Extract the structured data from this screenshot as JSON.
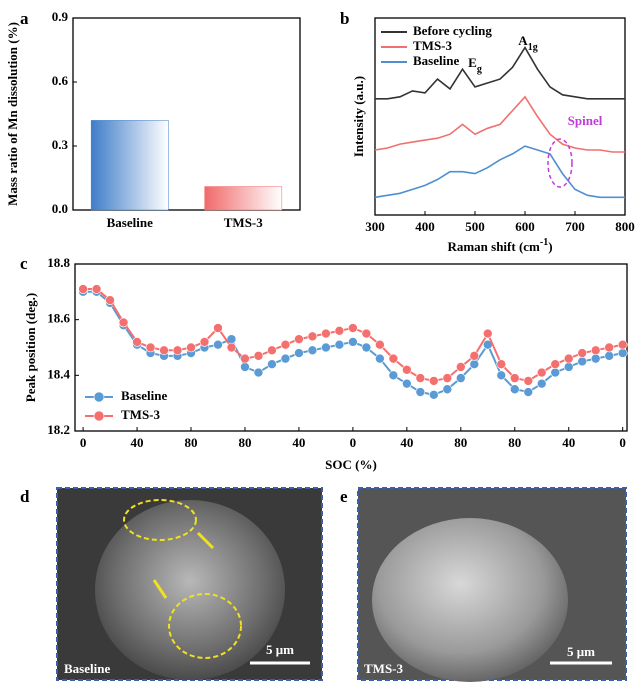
{
  "chart_data": [
    {
      "type": "bar",
      "label": "a",
      "y_label": "Mass ratio of Mn dissolution (%)",
      "categories": [
        "Baseline",
        "TMS-3"
      ],
      "values": [
        0.42,
        0.11
      ],
      "colors": [
        "#3f7cc9",
        "#f06a6a"
      ],
      "ylim": [
        0,
        0.9
      ],
      "yticks": [
        {
          "value": 0,
          "label": "0.0"
        },
        0.3,
        0.6,
        0.9
      ]
    },
    {
      "type": "line",
      "label": "b",
      "y_label": "Intensity (a.u.)",
      "x_label": {
        "text": "Raman shift (cm",
        "sup": "-1",
        "end": ")"
      },
      "x": [
        300,
        325,
        350,
        375,
        400,
        425,
        450,
        475,
        500,
        525,
        550,
        575,
        600,
        625,
        650,
        675,
        700,
        725,
        750,
        775,
        800
      ],
      "series": [
        {
          "name": "Before cycling",
          "color": "#333333",
          "values": [
            5.9,
            5.9,
            6.0,
            6.3,
            6.2,
            6.9,
            6.4,
            7.4,
            6.5,
            6.7,
            6.9,
            7.5,
            8.5,
            7.4,
            6.5,
            6.1,
            6.0,
            5.9,
            5.9,
            5.9,
            5.9
          ]
        },
        {
          "name": "TMS-3",
          "color": "#f07070",
          "values": [
            3.3,
            3.4,
            3.6,
            3.7,
            3.8,
            3.9,
            4.1,
            4.6,
            4.1,
            4.4,
            4.6,
            5.3,
            6.0,
            5.0,
            4.1,
            3.6,
            3.4,
            3.3,
            3.3,
            3.2,
            3.2
          ]
        },
        {
          "name": "Baseline",
          "color": "#4f8fd0",
          "values": [
            0.9,
            1.0,
            1.1,
            1.3,
            1.5,
            1.8,
            2.2,
            2.2,
            2.1,
            2.4,
            2.8,
            3.1,
            3.5,
            3.3,
            3.1,
            2.1,
            1.3,
            1.0,
            0.9,
            0.9,
            0.9
          ]
        }
      ],
      "xlim": [
        300,
        800
      ],
      "xticks": [
        300,
        400,
        500,
        600,
        700,
        800
      ],
      "ylim": [
        0,
        10
      ],
      "annotations": [
        {
          "text": "E",
          "sub": "g"
        },
        {
          "text": "A",
          "sub": "1g"
        },
        {
          "text": "Spinel"
        }
      ]
    },
    {
      "type": "line",
      "label": "c",
      "markers": true,
      "y_label": "Peak position (deg.)",
      "x_label": "SOC (%)",
      "x": [
        0,
        0.25,
        0.5,
        0.75,
        1,
        1.25,
        1.5,
        1.75,
        2,
        2.25,
        2.5,
        2.75,
        3,
        3.25,
        3.5,
        3.75,
        4,
        4.25,
        4.5,
        4.75,
        5,
        5.25,
        5.5,
        5.75,
        6,
        6.25,
        6.5,
        6.75,
        7,
        7.25,
        7.5,
        7.75,
        8,
        8.25,
        8.5,
        8.75,
        9,
        9.25,
        9.5,
        9.75,
        10
      ],
      "series": [
        {
          "name": "Baseline",
          "color": "#5b9bd5",
          "values": [
            18.7,
            18.7,
            18.66,
            18.58,
            18.51,
            18.48,
            18.47,
            18.47,
            18.48,
            18.5,
            18.51,
            18.53,
            18.43,
            18.41,
            18.44,
            18.46,
            18.48,
            18.49,
            18.5,
            18.51,
            18.52,
            18.5,
            18.46,
            18.4,
            18.37,
            18.34,
            18.33,
            18.35,
            18.39,
            18.44,
            18.51,
            18.4,
            18.35,
            18.34,
            18.37,
            18.41,
            18.43,
            18.45,
            18.46,
            18.47,
            18.48
          ]
        },
        {
          "name": "TMS-3",
          "color": "#f4706f",
          "values": [
            18.71,
            18.71,
            18.67,
            18.59,
            18.52,
            18.5,
            18.49,
            18.49,
            18.5,
            18.52,
            18.57,
            18.5,
            18.46,
            18.47,
            18.49,
            18.51,
            18.53,
            18.54,
            18.55,
            18.56,
            18.57,
            18.55,
            18.51,
            18.46,
            18.42,
            18.39,
            18.38,
            18.39,
            18.43,
            18.47,
            18.55,
            18.44,
            18.39,
            18.38,
            18.41,
            18.44,
            18.46,
            18.48,
            18.49,
            18.5,
            18.51
          ]
        }
      ],
      "xlim": [
        -0.15,
        10.08
      ],
      "xticks": [
        {
          "value": 0,
          "label": "0"
        },
        {
          "value": 1,
          "label": "40"
        },
        {
          "value": 2,
          "label": "80"
        },
        {
          "value": 3,
          "label": "80"
        },
        {
          "value": 4,
          "label": "40"
        },
        {
          "value": 5,
          "label": "0"
        },
        {
          "value": 6,
          "label": "40"
        },
        {
          "value": 7,
          "label": "80"
        },
        {
          "value": 8,
          "label": "80"
        },
        {
          "value": 9,
          "label": "40"
        },
        {
          "value": 10,
          "label": "0"
        }
      ],
      "ylim": [
        18.2,
        18.8
      ],
      "yticks": [
        18.2,
        18.4,
        18.6,
        18.8
      ]
    }
  ],
  "images": [
    {
      "label": "d",
      "caption": "Baseline",
      "scale_bar": "5 μm"
    },
    {
      "label": "e",
      "caption": "TMS-3",
      "scale_bar": "5 μm"
    }
  ]
}
